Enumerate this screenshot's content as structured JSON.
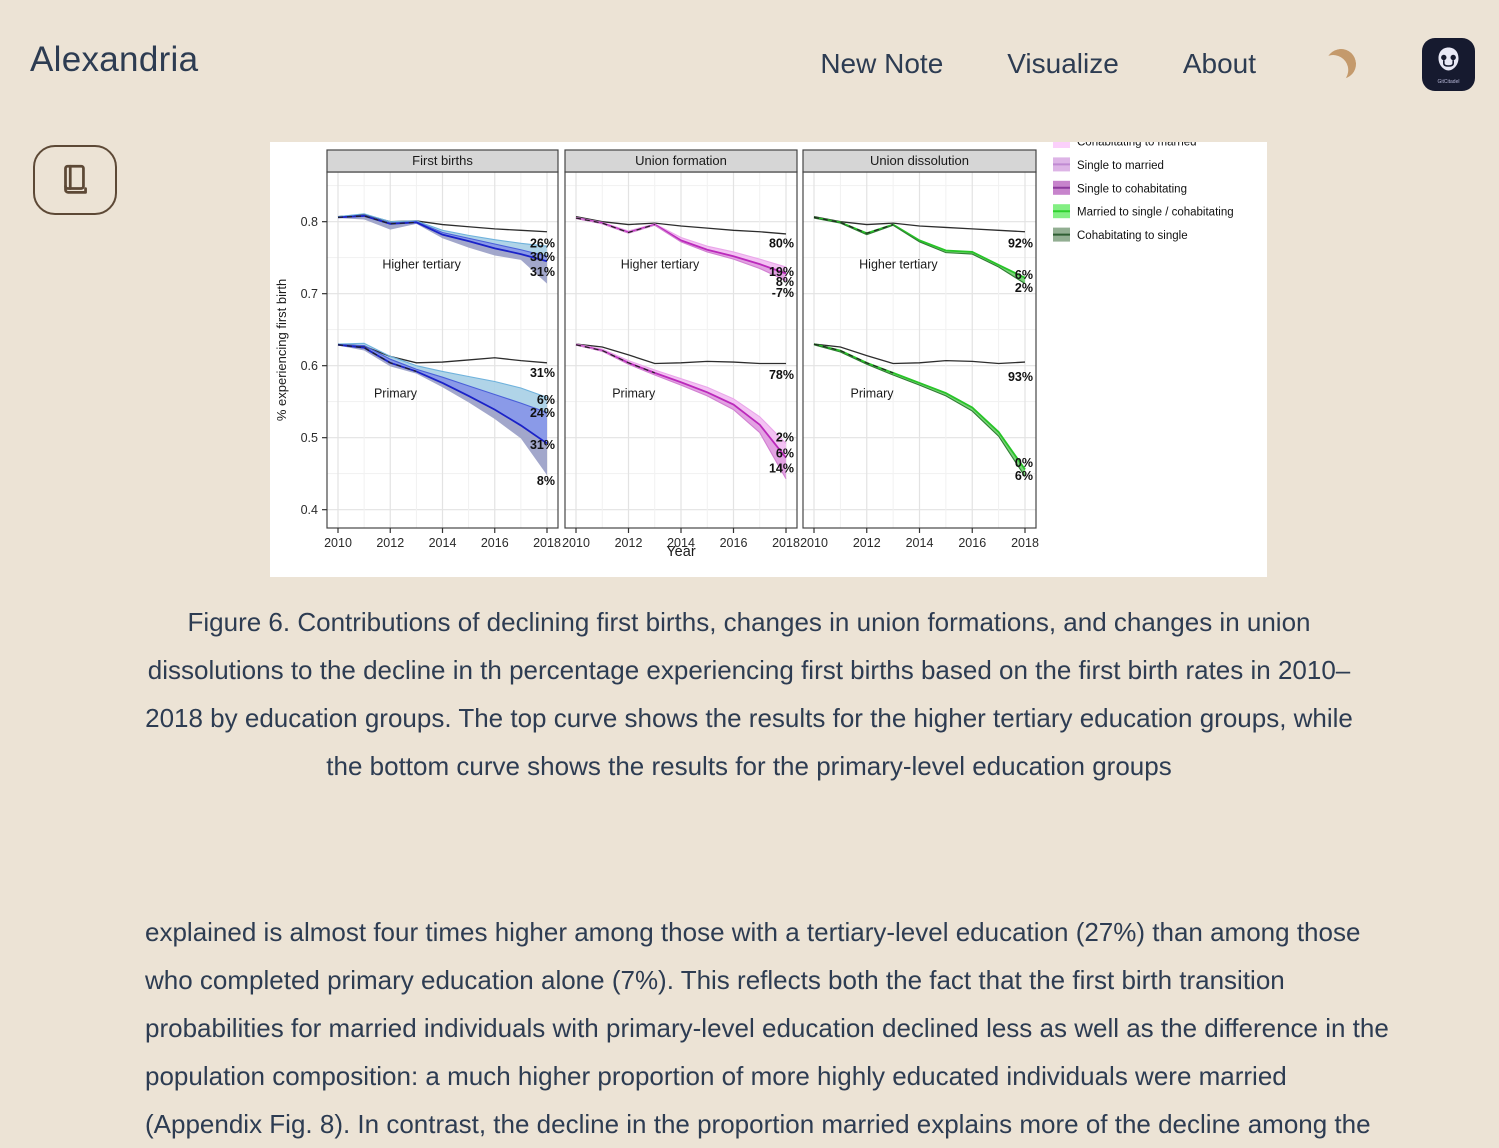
{
  "page": {
    "background": "#ece3d5",
    "text_color": "#2d3c52",
    "accent_brown": "#c49a6c"
  },
  "header": {
    "brand": "Alexandria",
    "nav": [
      {
        "label": "New Note"
      },
      {
        "label": "Visualize"
      },
      {
        "label": "About"
      }
    ],
    "icons": {
      "theme_toggle": "moon-icon",
      "logo": "gitcitadel-logo"
    },
    "logo_text": "GitCitadel"
  },
  "sidebar": {
    "reader_button_icon": "book-icon"
  },
  "caption": "Figure 6. Contributions of declining first births, changes in union formations, and changes in union dissolutions to the decline in th percentage experiencing first births based on the first birth rates in 2010–2018 by education groups. The top curve shows the results for the higher tertiary education groups, while the bottom curve shows the results for the primary-level education groups",
  "body": {
    "paragraph": "explained is almost four times higher among those with a tertiary-level education (27%) than among those who completed primary education alone (7%). This reflects both the fact that the first birth transition probabilities for married individuals with primary-level education declined less as well as the difference in the population composition: a much higher proportion of more highly educated individuals were married (Appendix Fig. 8). In",
    "clipped_continuation": " contrast, the decline in the proportion married explains more of the decline among the"
  },
  "chart_data": {
    "type": "line",
    "x": [
      2010,
      2011,
      2012,
      2013,
      2014,
      2015,
      2016,
      2017,
      2018
    ],
    "xticks": [
      2010,
      2012,
      2014,
      2016,
      2018
    ],
    "yticks": [
      0.4,
      0.5,
      0.6,
      0.7,
      0.8
    ],
    "ylim": [
      0.375,
      0.869
    ],
    "xlabel": "Year",
    "ylabel": "% experiencing first birth",
    "grid": true,
    "legend_position": "right-outside-top",
    "legend": [
      {
        "label": "Cohabitating to married",
        "fill": "#fbd0fb",
        "line": "#f0a3f0",
        "partially_cut": true
      },
      {
        "label": "Single to married",
        "fill": "#ddb4e6",
        "line": "#c08ad2"
      },
      {
        "label": "Single to cohabitating",
        "fill": "#c784cc",
        "line": "#8c3a9c"
      },
      {
        "label": "Married to single / cohabitating",
        "fill": "#83ef83",
        "line": "#2ed12e"
      },
      {
        "label": "Cohabitating to single",
        "fill": "#92ae92",
        "line": "#2f5e33"
      }
    ],
    "panels": [
      {
        "title": "First births",
        "band_colors": [
          "#a9d0e6",
          "#8091e6",
          "#9a9fc7"
        ],
        "line_colors": [
          "#6fb2dc",
          "#4a5fd9",
          "#1a22c8"
        ],
        "main_curve": 2,
        "groups": [
          {
            "label": "Higher tertiary",
            "label_x": 2013.2,
            "label_y": 0.735,
            "reference": [
              0.807,
              0.81,
              0.8,
              0.801,
              0.796,
              0.793,
              0.79,
              0.788,
              0.786
            ],
            "curves": [
              [
                0.807,
                0.811,
                0.8,
                0.801,
                0.788,
                0.781,
                0.775,
                0.77,
                0.766
              ],
              [
                0.806,
                0.809,
                0.798,
                0.8,
                0.785,
                0.777,
                0.769,
                0.761,
                0.752
              ],
              [
                0.806,
                0.808,
                0.797,
                0.799,
                0.782,
                0.773,
                0.763,
                0.755,
                0.745
              ],
              [
                0.805,
                0.803,
                0.789,
                0.797,
                0.777,
                0.764,
                0.753,
                0.747,
                0.714
              ]
            ],
            "annotations": [
              {
                "text": "26%",
                "y": 0.77
              },
              {
                "text": "30%",
                "y": 0.751
              },
              {
                "text": "31%",
                "y": 0.73
              }
            ]
          },
          {
            "label": "Primary",
            "label_x": 2012.2,
            "label_y": 0.556,
            "reference": [
              0.63,
              0.627,
              0.613,
              0.604,
              0.605,
              0.608,
              0.611,
              0.607,
              0.604
            ],
            "curves": [
              [
                0.63,
                0.631,
                0.613,
                0.6,
                0.592,
                0.585,
                0.578,
                0.569,
                0.556
              ],
              [
                0.629,
                0.628,
                0.609,
                0.595,
                0.584,
                0.572,
                0.56,
                0.548,
                0.535
              ],
              [
                0.629,
                0.625,
                0.604,
                0.592,
                0.576,
                0.558,
                0.539,
                0.517,
                0.492
              ],
              [
                0.628,
                0.621,
                0.599,
                0.589,
                0.57,
                0.549,
                0.526,
                0.499,
                0.448
              ]
            ],
            "annotations": [
              {
                "text": "31%",
                "y": 0.59
              },
              {
                "text": "6%",
                "y": 0.552
              },
              {
                "text": "24%",
                "y": 0.534
              },
              {
                "text": "31%",
                "y": 0.49
              },
              {
                "text": "8%",
                "y": 0.44
              }
            ]
          }
        ]
      },
      {
        "title": "Union formation",
        "band_colors": [
          "#f2bdf2",
          "#e09ae0"
        ],
        "line_colors": [
          "#eaa6ea",
          "#bb29bb",
          "#d17fd1"
        ],
        "main_curve": 1,
        "groups": [
          {
            "label": "Higher tertiary",
            "label_x": 2013.2,
            "label_y": 0.735,
            "reference": [
              0.807,
              0.8,
              0.796,
              0.798,
              0.794,
              0.791,
              0.788,
              0.786,
              0.783
            ],
            "curves": [
              [
                0.806,
                0.799,
                0.787,
                0.797,
                0.778,
                0.766,
                0.758,
                0.748,
                0.737
              ],
              [
                0.805,
                0.798,
                0.785,
                0.796,
                0.774,
                0.761,
                0.752,
                0.741,
                0.728
              ],
              [
                0.805,
                0.797,
                0.784,
                0.795,
                0.772,
                0.758,
                0.748,
                0.735,
                0.718
              ]
            ],
            "annotations": [
              {
                "text": "80%",
                "y": 0.77
              },
              {
                "text": "19%",
                "y": 0.73
              },
              {
                "text": "8%",
                "y": 0.716
              },
              {
                "text": "-7%",
                "y": 0.701
              }
            ]
          },
          {
            "label": "Primary",
            "label_x": 2012.2,
            "label_y": 0.556,
            "reference": [
              0.63,
              0.626,
              0.615,
              0.603,
              0.604,
              0.606,
              0.605,
              0.603,
              0.603
            ],
            "curves": [
              [
                0.63,
                0.623,
                0.607,
                0.594,
                0.582,
                0.57,
                0.554,
                0.529,
                0.492
              ],
              [
                0.629,
                0.621,
                0.604,
                0.59,
                0.577,
                0.563,
                0.546,
                0.518,
                0.472
              ],
              [
                0.629,
                0.62,
                0.602,
                0.587,
                0.573,
                0.558,
                0.539,
                0.507,
                0.443
              ]
            ],
            "annotations": [
              {
                "text": "78%",
                "y": 0.587
              },
              {
                "text": "2%",
                "y": 0.5
              },
              {
                "text": "6%",
                "y": 0.478
              },
              {
                "text": "14%",
                "y": 0.457
              }
            ]
          }
        ]
      },
      {
        "title": "Union dissolution",
        "band_colors": [
          "#6fcf6f"
        ],
        "line_colors": [
          "#27c427",
          "#2e7d32"
        ],
        "main_curve": 0,
        "groups": [
          {
            "label": "Higher tertiary",
            "label_x": 2013.2,
            "label_y": 0.735,
            "reference": [
              0.807,
              0.8,
              0.796,
              0.798,
              0.794,
              0.792,
              0.79,
              0.788,
              0.786
            ],
            "curves": [
              [
                0.806,
                0.799,
                0.784,
                0.796,
                0.774,
                0.76,
                0.758,
                0.74,
                0.722
              ],
              [
                0.805,
                0.798,
                0.782,
                0.795,
                0.772,
                0.757,
                0.755,
                0.737,
                0.714
              ]
            ],
            "annotations": [
              {
                "text": "92%",
                "y": 0.77
              },
              {
                "text": "6%",
                "y": 0.726
              },
              {
                "text": "2%",
                "y": 0.708
              }
            ]
          },
          {
            "label": "Primary",
            "label_x": 2012.2,
            "label_y": 0.556,
            "reference": [
              0.63,
              0.626,
              0.614,
              0.603,
              0.604,
              0.607,
              0.606,
              0.603,
              0.605
            ],
            "curves": [
              [
                0.63,
                0.621,
                0.604,
                0.59,
                0.576,
                0.562,
                0.542,
                0.508,
                0.456
              ],
              [
                0.629,
                0.619,
                0.602,
                0.587,
                0.573,
                0.558,
                0.537,
                0.502,
                0.446
              ]
            ],
            "annotations": [
              {
                "text": "93%",
                "y": 0.584
              },
              {
                "text": "0%",
                "y": 0.465
              },
              {
                "text": "6%",
                "y": 0.447
              }
            ]
          }
        ]
      }
    ]
  }
}
